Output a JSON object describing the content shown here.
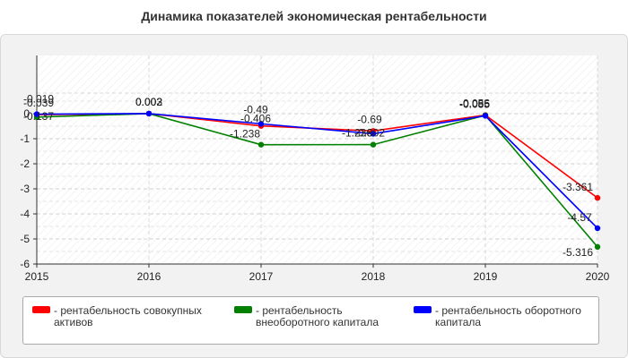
{
  "chart_data": {
    "type": "line",
    "title": "Динамика показателей экономическая рентабельности",
    "categories": [
      "2015",
      "2016",
      "2017",
      "2018",
      "2019",
      "2020"
    ],
    "ylim": [
      -6,
      0
    ],
    "yticks": [
      "0",
      "-1",
      "-2",
      "-3",
      "-4",
      "-5",
      "-6"
    ],
    "grid": true,
    "legend_position": "bottom",
    "series": [
      {
        "name": "рентабельность совокупных активов",
        "color": "#ff0000",
        "values": [
          -0.039,
          0.002,
          -0.49,
          -0.69,
          -0.056,
          -3.361
        ],
        "labels": [
          "-0.039",
          "0.002",
          "-0.49",
          "-0.69",
          "-0.056",
          "-3.361"
        ]
      },
      {
        "name": "рентабельность внеоборотного капитала",
        "color": "#008000",
        "values": [
          -0.137,
          0.002,
          -1.238,
          -1.236,
          -0.065,
          -5.316
        ],
        "labels": [
          "-0.137",
          "0.002",
          "-1.238",
          "-1.236",
          "-0.065",
          "-5.316"
        ]
      },
      {
        "name": "рентабельность оборотного капитала",
        "color": "#0000ff",
        "values": [
          -0.019,
          0.003,
          -0.406,
          -0.802,
          -0.085,
          -4.57
        ],
        "labels": [
          "-0.019",
          "0.003",
          "-0.406",
          "-0.802",
          "-0.085",
          "-4.57"
        ]
      }
    ]
  },
  "legend": {
    "item1_line1": "- рентабельность совокупных",
    "item1_line2": "активов",
    "item2_line1": "- рентабельность",
    "item2_line2": "внеоборотного капитала",
    "item3_line1": "- рентабельность оборотного",
    "item3_line2": "капитала"
  }
}
